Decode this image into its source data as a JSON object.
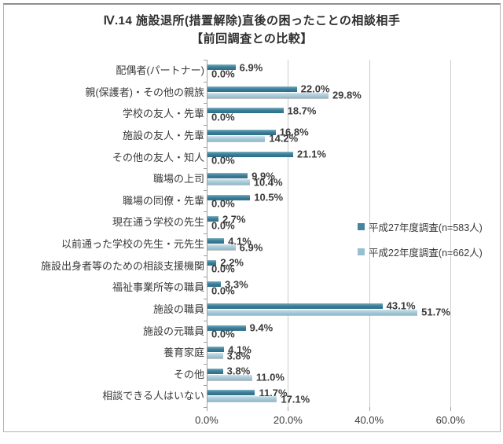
{
  "title": {
    "line1": "Ⅳ.14 施設退所(措置解除)直後の困ったことの相談相手",
    "line2": "【前回調査との比較】"
  },
  "legend": [
    {
      "label": "平成27年度調査(n=583人)",
      "color": "#45849d"
    },
    {
      "label": "平成22年度調査(n=662人)",
      "color": "#96c0d2"
    }
  ],
  "chart_data": {
    "type": "bar",
    "orientation": "horizontal",
    "title": "Ⅳ.14 施設退所(措置解除)直後の困ったことの相談相手【前回調査との比較】",
    "categories": [
      "配偶者(パートナー)",
      "親(保護者)・その他の親族",
      "学校の友人・先輩",
      "施設の友人・先輩",
      "その他の友人・知人",
      "職場の上司",
      "職場の同僚・先輩",
      "現在通う学校の先生",
      "以前通った学校の先生・元先生",
      "施設出身者等のための相談支援機関",
      "福祉事業所等の職員",
      "施設の職員",
      "施設の元職員",
      "養育家庭",
      "その他",
      "相談できる人はいない"
    ],
    "series": [
      {
        "name": "平成27年度調査(n=583人)",
        "color": "#3c7d97",
        "values": [
          6.9,
          22.0,
          18.7,
          16.8,
          21.1,
          9.9,
          10.5,
          2.7,
          4.1,
          2.2,
          3.3,
          43.1,
          9.4,
          4.1,
          3.8,
          11.7
        ]
      },
      {
        "name": "平成22年度調査(n=662人)",
        "color": "#a3c8d7",
        "values": [
          0.0,
          29.8,
          0.0,
          14.2,
          0.0,
          10.4,
          0.0,
          0.0,
          6.9,
          0.0,
          0.0,
          51.7,
          0.0,
          3.8,
          11.0,
          17.1
        ]
      }
    ],
    "xlim": [
      0,
      60
    ],
    "x_ticks": [
      "0.0%",
      "20.0%",
      "40.0%",
      "60.0%"
    ],
    "value_suffix": "%",
    "grid": true,
    "legend_position": "inside-right-middle"
  }
}
